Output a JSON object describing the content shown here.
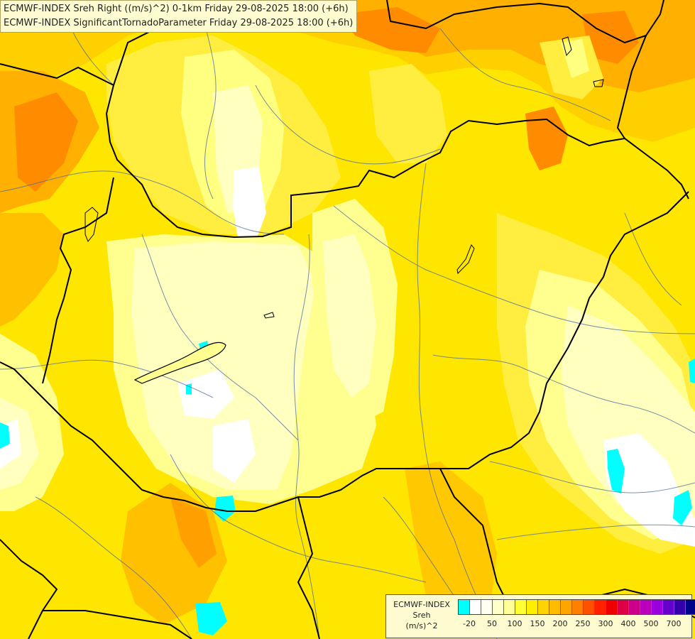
{
  "header": {
    "line1": "ECMWF-INDEX Sreh Right ((m/s)^2) 0-1km Friday 29-08-2025 18:00 (+6h)",
    "line2": "ECMWF-INDEX SignificantTornadoParameter Friday 29-08-2025 18:00 (+6h)"
  },
  "legend": {
    "title1": "ECMWF-INDEX",
    "title2": "Sreh",
    "title3": "(m/s)^2",
    "colors": [
      "#00ffff",
      "#ffffff",
      "#fffff0",
      "#ffffcc",
      "#ffff99",
      "#ffff33",
      "#ffee00",
      "#ffd400",
      "#ffbb00",
      "#ffa500",
      "#ff8000",
      "#ff5000",
      "#ff2000",
      "#ee0000",
      "#dd0044",
      "#cc0088",
      "#bb00bb",
      "#9900dd",
      "#6600cc",
      "#3300aa",
      "#000088"
    ],
    "ticks": [
      "-20",
      "50",
      "100",
      "150",
      "200",
      "250",
      "300",
      "400",
      "500",
      "700"
    ]
  },
  "colors": {
    "pale": "#ffffc0",
    "light": "#ffff80",
    "yellow": "#ffee00",
    "gold": "#ffd000",
    "orange": "#ffa500",
    "deep_orange": "#ff8000",
    "cyan": "#00ffff",
    "border": "#000000",
    "river": "#4a6aa0"
  }
}
